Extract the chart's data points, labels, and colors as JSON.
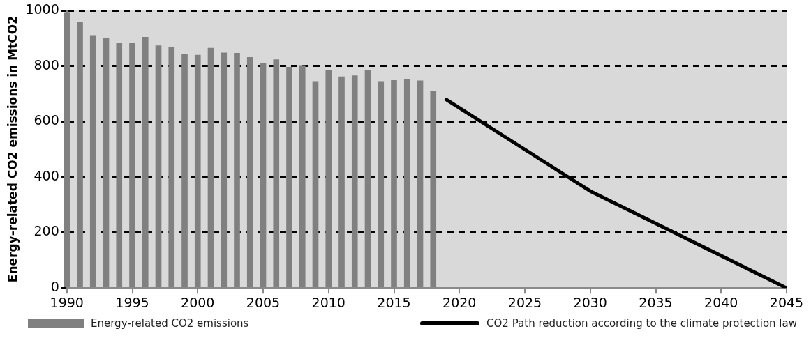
{
  "chart_data": {
    "type": "bar",
    "ylabel": "Energy-related CO2 emissions in MtCO2",
    "x": [
      1990,
      1991,
      1992,
      1993,
      1994,
      1995,
      1996,
      1997,
      1998,
      1999,
      2000,
      2001,
      2002,
      2003,
      2004,
      2005,
      2006,
      2007,
      2008,
      2009,
      2010,
      2011,
      2012,
      2013,
      2014,
      2015,
      2016,
      2017,
      2018
    ],
    "series": [
      {
        "name": "Energy-related CO2 emissions",
        "color": "#808080",
        "values": [
          993,
          957,
          910,
          901,
          883,
          883,
          904,
          873,
          867,
          841,
          839,
          864,
          847,
          846,
          831,
          811,
          823,
          796,
          802,
          744,
          784,
          761,
          765,
          784,
          744,
          748,
          752,
          747,
          709
        ]
      },
      {
        "name": "CO2 Path reduction according to the climate protection law",
        "type": "line",
        "color": "#000000",
        "x": [
          2019,
          2030,
          2045
        ],
        "values": [
          679,
          349,
          0
        ]
      }
    ],
    "xlim": [
      1990,
      2045
    ],
    "xticks": [
      1990,
      1995,
      2000,
      2005,
      2010,
      2015,
      2020,
      2025,
      2030,
      2035,
      2040,
      2045
    ],
    "ylim": [
      0,
      1000
    ],
    "yticks": [
      0,
      200,
      400,
      600,
      800,
      1000
    ],
    "grid": "y",
    "marker": "none",
    "legend": "bottom"
  }
}
